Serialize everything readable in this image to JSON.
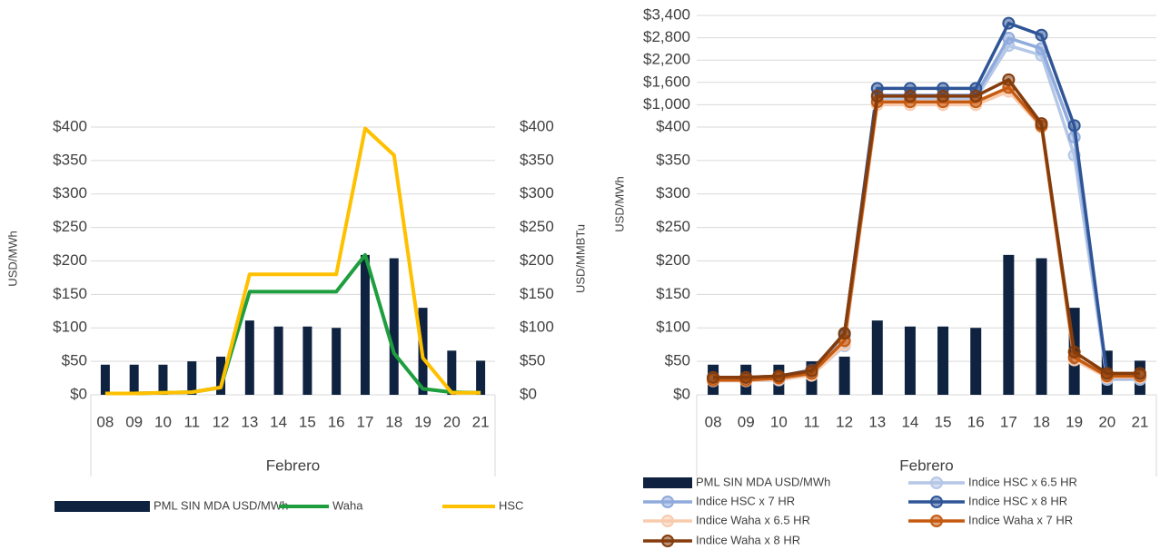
{
  "chart_data": [
    {
      "type": "bar",
      "categories": [
        "08",
        "09",
        "10",
        "11",
        "12",
        "13",
        "14",
        "15",
        "16",
        "17",
        "18",
        "19",
        "20",
        "21"
      ],
      "xlabel": "Febrero",
      "ylabel": "USD/MWh",
      "y2label": "USD/MMBTu",
      "ylim": [
        0,
        400
      ],
      "yticks": [
        {
          "value": 0,
          "label": "$0"
        },
        {
          "value": 50,
          "label": "$50"
        },
        {
          "value": 100,
          "label": "$100"
        },
        {
          "value": 150,
          "label": "$150"
        },
        {
          "value": 200,
          "label": "$200"
        },
        {
          "value": 250,
          "label": "$250"
        },
        {
          "value": 300,
          "label": "$300"
        },
        {
          "value": 350,
          "label": "$350"
        },
        {
          "value": 400,
          "label": "$400"
        }
      ],
      "y2lim": [
        0,
        400
      ],
      "y2ticks": [
        {
          "value": 0,
          "label": "$0"
        },
        {
          "value": 50,
          "label": "$50"
        },
        {
          "value": 100,
          "label": "$100"
        },
        {
          "value": 150,
          "label": "$150"
        },
        {
          "value": 200,
          "label": "$200"
        },
        {
          "value": 250,
          "label": "$250"
        },
        {
          "value": 300,
          "label": "$300"
        },
        {
          "value": 350,
          "label": "$350"
        },
        {
          "value": 400,
          "label": "$400"
        }
      ],
      "grid": true,
      "legend": "bottom",
      "series": [
        {
          "name": "PML SIN MDA USD/MWh",
          "type": "bar",
          "color": "#0f2341",
          "values": [
            45,
            45,
            45,
            50,
            57,
            111,
            102,
            102,
            100,
            209,
            204,
            130,
            66,
            51
          ]
        },
        {
          "name": "Waha",
          "type": "line",
          "axis": "y2",
          "color": "#1e9e3e",
          "values": [
            2,
            2,
            3,
            4,
            11,
            154,
            154,
            154,
            154,
            209,
            62,
            9,
            4,
            3
          ]
        },
        {
          "name": "HSC",
          "type": "line",
          "axis": "y2",
          "color": "#ffc000",
          "values": [
            2,
            2,
            3,
            4,
            11,
            180,
            180,
            180,
            180,
            398,
            358,
            55,
            3,
            3
          ]
        }
      ]
    },
    {
      "type": "bar",
      "categories": [
        "08",
        "09",
        "10",
        "11",
        "12",
        "13",
        "14",
        "15",
        "16",
        "17",
        "18",
        "19",
        "20",
        "21"
      ],
      "xlabel": "Febrero",
      "ylabel": "USD/MWh",
      "ylim": [
        0,
        3400
      ],
      "yticks": [
        {
          "value": 0,
          "label": "$0"
        },
        {
          "value": 50,
          "label": "$50"
        },
        {
          "value": 100,
          "label": "$100"
        },
        {
          "value": 150,
          "label": "$150"
        },
        {
          "value": 200,
          "label": "$200"
        },
        {
          "value": 250,
          "label": "$250"
        },
        {
          "value": 300,
          "label": "$300"
        },
        {
          "value": 350,
          "label": "$350"
        },
        {
          "value": 400,
          "label": "$400"
        },
        {
          "value": 1000,
          "label": "$1,000"
        },
        {
          "value": 1600,
          "label": "$1,600"
        },
        {
          "value": 2200,
          "label": "$2,200"
        },
        {
          "value": 2800,
          "label": "$2,800"
        },
        {
          "value": 3400,
          "label": "$3,400"
        }
      ],
      "grid": true,
      "legend": "bottom",
      "series": [
        {
          "name": "PML SIN MDA USD/MWh",
          "type": "bar",
          "color": "#0f2341",
          "values": [
            45,
            45,
            45,
            50,
            57,
            111,
            102,
            102,
            100,
            209,
            204,
            130,
            66,
            51
          ]
        },
        {
          "name": "Indice HSC x 6.5 HR",
          "type": "line",
          "marker": "circle",
          "color": "#b4c7e7",
          "values": [
            21,
            21,
            22,
            30,
            73,
            1170,
            1170,
            1170,
            1170,
            2590,
            2330,
            358,
            23,
            23
          ]
        },
        {
          "name": "Indice HSC x 7 HR",
          "type": "line",
          "marker": "circle",
          "color": "#8faadc",
          "values": [
            22,
            22,
            24,
            32,
            79,
            1260,
            1260,
            1260,
            1260,
            2790,
            2510,
            385,
            25,
            25
          ]
        },
        {
          "name": "Indice HSC x 8 HR",
          "type": "line",
          "marker": "circle",
          "color": "#2f5597",
          "values": [
            26,
            26,
            28,
            37,
            90,
            1440,
            1440,
            1440,
            1440,
            3190,
            2870,
            440,
            28,
            28
          ]
        },
        {
          "name": "Indice Waha x 6.5 HR",
          "type": "line",
          "marker": "circle",
          "color": "#f8cbad",
          "values": [
            21,
            21,
            23,
            29,
            75,
            1001,
            1001,
            1001,
            1001,
            1359,
            403,
            52,
            26,
            26
          ]
        },
        {
          "name": "Indice Waha x 7 HR",
          "type": "line",
          "marker": "circle",
          "color": "#c55a11",
          "values": [
            22,
            22,
            25,
            32,
            81,
            1078,
            1078,
            1078,
            1078,
            1463,
            434,
            56,
            28,
            28
          ]
        },
        {
          "name": "Indice Waha x 8 HR",
          "type": "line",
          "marker": "circle",
          "color": "#843c0c",
          "values": [
            26,
            26,
            28,
            36,
            92,
            1232,
            1232,
            1232,
            1232,
            1672,
            496,
            64,
            32,
            32
          ]
        }
      ]
    }
  ]
}
